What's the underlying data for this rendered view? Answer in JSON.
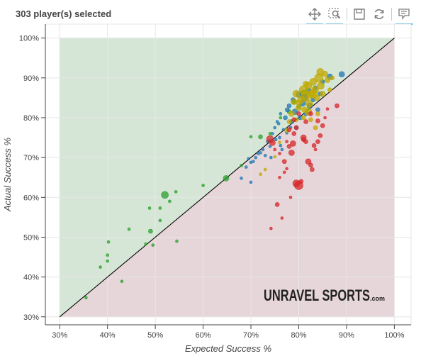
{
  "header": {
    "title": "303 player(s) selected"
  },
  "toolbar": {
    "icons": [
      "pan-icon",
      "box-zoom-icon",
      "save-icon",
      "reset-icon",
      "hover-icon"
    ],
    "accent": "#26aae1"
  },
  "watermark": {
    "text": "UNRAVEL SPORTS",
    "suffix": ".com"
  },
  "chart_data": {
    "type": "scatter",
    "xlabel": "Expected Success %",
    "ylabel": "Actual Success %",
    "xlim": [
      0.27,
      1.035
    ],
    "ylim": [
      0.28,
      1.035
    ],
    "x_ticks": [
      0.3,
      0.4,
      0.5,
      0.6,
      0.7,
      0.8,
      0.9,
      1.0
    ],
    "y_ticks": [
      0.3,
      0.4,
      0.5,
      0.6,
      0.7,
      0.8,
      0.9,
      1.0
    ],
    "x_tick_labels": [
      "30%",
      "40%",
      "50%",
      "60%",
      "70%",
      "80%",
      "90%",
      "100%"
    ],
    "y_tick_labels": [
      "30%",
      "40%",
      "50%",
      "60%",
      "70%",
      "80%",
      "90%",
      "100%"
    ],
    "grid": true,
    "diagonal": [
      0.3,
      1.0
    ],
    "regions": {
      "above": "#d6e6d6",
      "below": "#e6d6d9"
    },
    "colors": {
      "green": "#2ca02c",
      "blue": "#1f77b4",
      "yellow": "#bfa800",
      "red": "#d62728"
    },
    "series": [
      {
        "color": "green",
        "points": [
          [
            0.355,
            0.348,
            2
          ],
          [
            0.385,
            0.425,
            2
          ],
          [
            0.4,
            0.455,
            2
          ],
          [
            0.4,
            0.44,
            2
          ],
          [
            0.402,
            0.488,
            2
          ],
          [
            0.43,
            0.389,
            2
          ],
          [
            0.445,
            0.52,
            2
          ],
          [
            0.48,
            0.483,
            2
          ],
          [
            0.49,
            0.515,
            3
          ],
          [
            0.495,
            0.48,
            2
          ],
          [
            0.488,
            0.573,
            2
          ],
          [
            0.51,
            0.542,
            2
          ],
          [
            0.51,
            0.573,
            2
          ],
          [
            0.52,
            0.606,
            5
          ],
          [
            0.53,
            0.59,
            2
          ],
          [
            0.543,
            0.614,
            2
          ],
          [
            0.545,
            0.49,
            2
          ],
          [
            0.6,
            0.63,
            2
          ],
          [
            0.648,
            0.648,
            4
          ],
          [
            0.68,
            0.68,
            2
          ],
          [
            0.7,
            0.752,
            2
          ],
          [
            0.72,
            0.752,
            3
          ],
          [
            0.74,
            0.76,
            2
          ],
          [
            0.762,
            0.8,
            2
          ],
          [
            0.78,
            0.815,
            3
          ],
          [
            0.79,
            0.84,
            4
          ],
          [
            0.81,
            0.86,
            5
          ],
          [
            0.8,
            0.828,
            3
          ]
        ]
      },
      {
        "color": "blue",
        "points": [
          [
            0.68,
            0.648,
            2
          ],
          [
            0.69,
            0.676,
            2
          ],
          [
            0.695,
            0.697,
            2
          ],
          [
            0.7,
            0.688,
            2
          ],
          [
            0.705,
            0.69,
            2
          ],
          [
            0.71,
            0.7,
            2
          ],
          [
            0.715,
            0.71,
            2
          ],
          [
            0.72,
            0.712,
            2
          ],
          [
            0.725,
            0.72,
            2
          ],
          [
            0.73,
            0.705,
            2
          ],
          [
            0.735,
            0.74,
            2
          ],
          [
            0.74,
            0.728,
            2
          ],
          [
            0.745,
            0.76,
            2
          ],
          [
            0.75,
            0.775,
            2
          ],
          [
            0.755,
            0.79,
            2
          ],
          [
            0.76,
            0.75,
            2
          ],
          [
            0.762,
            0.81,
            2
          ],
          [
            0.768,
            0.77,
            2
          ],
          [
            0.772,
            0.8,
            3
          ],
          [
            0.776,
            0.82,
            3
          ],
          [
            0.78,
            0.83,
            3
          ],
          [
            0.785,
            0.79,
            3
          ],
          [
            0.788,
            0.845,
            3
          ],
          [
            0.792,
            0.815,
            4
          ],
          [
            0.795,
            0.775,
            3
          ],
          [
            0.8,
            0.858,
            4
          ],
          [
            0.803,
            0.8,
            3
          ],
          [
            0.808,
            0.836,
            4
          ],
          [
            0.812,
            0.85,
            5
          ],
          [
            0.815,
            0.81,
            3
          ],
          [
            0.82,
            0.868,
            4
          ],
          [
            0.823,
            0.83,
            4
          ],
          [
            0.83,
            0.845,
            3
          ],
          [
            0.835,
            0.875,
            3
          ],
          [
            0.84,
            0.82,
            3
          ],
          [
            0.845,
            0.86,
            3
          ],
          [
            0.85,
            0.89,
            3
          ],
          [
            0.865,
            0.903,
            4
          ],
          [
            0.89,
            0.909,
            4
          ],
          [
            0.74,
            0.742,
            2
          ],
          [
            0.752,
            0.745,
            2
          ],
          [
            0.762,
            0.73,
            2
          ],
          [
            0.765,
            0.72,
            2
          ],
          [
            0.758,
            0.785,
            2
          ],
          [
            0.775,
            0.762,
            2
          ],
          [
            0.783,
            0.775,
            2
          ],
          [
            0.7,
            0.638,
            2
          ],
          [
            0.742,
            0.7,
            2
          ]
        ]
      },
      {
        "color": "yellow",
        "points": [
          [
            0.72,
            0.658,
            2
          ],
          [
            0.73,
            0.67,
            2
          ],
          [
            0.75,
            0.702,
            2
          ],
          [
            0.76,
            0.738,
            2
          ],
          [
            0.775,
            0.768,
            3
          ],
          [
            0.78,
            0.79,
            3
          ],
          [
            0.785,
            0.81,
            4
          ],
          [
            0.79,
            0.84,
            4
          ],
          [
            0.795,
            0.86,
            5
          ],
          [
            0.8,
            0.825,
            4
          ],
          [
            0.805,
            0.845,
            5
          ],
          [
            0.81,
            0.87,
            6
          ],
          [
            0.812,
            0.82,
            4
          ],
          [
            0.815,
            0.855,
            7
          ],
          [
            0.82,
            0.88,
            5
          ],
          [
            0.822,
            0.835,
            5
          ],
          [
            0.826,
            0.86,
            5
          ],
          [
            0.83,
            0.89,
            5
          ],
          [
            0.834,
            0.87,
            5
          ],
          [
            0.838,
            0.85,
            4
          ],
          [
            0.842,
            0.9,
            6
          ],
          [
            0.846,
            0.88,
            5
          ],
          [
            0.85,
            0.86,
            4
          ],
          [
            0.855,
            0.91,
            4
          ],
          [
            0.86,
            0.895,
            4
          ],
          [
            0.865,
            0.87,
            3
          ],
          [
            0.87,
            0.9,
            3
          ],
          [
            0.81,
            0.8,
            3
          ],
          [
            0.825,
            0.795,
            3
          ],
          [
            0.84,
            0.81,
            3
          ],
          [
            0.835,
            0.775,
            3
          ],
          [
            0.795,
            0.795,
            3
          ],
          [
            0.82,
            0.815,
            5
          ],
          [
            0.8,
            0.838,
            4
          ],
          [
            0.815,
            0.885,
            4
          ],
          [
            0.83,
            0.86,
            6
          ],
          [
            0.845,
            0.915,
            5
          ]
        ]
      },
      {
        "color": "red",
        "points": [
          [
            0.74,
            0.746,
            5
          ],
          [
            0.745,
            0.737,
            4
          ],
          [
            0.75,
            0.72,
            2
          ],
          [
            0.755,
            0.582,
            3
          ],
          [
            0.742,
            0.522,
            2
          ],
          [
            0.765,
            0.548,
            2
          ],
          [
            0.76,
            0.65,
            2
          ],
          [
            0.77,
            0.663,
            2
          ],
          [
            0.775,
            0.672,
            2
          ],
          [
            0.78,
            0.728,
            3
          ],
          [
            0.785,
            0.712,
            4
          ],
          [
            0.788,
            0.735,
            4
          ],
          [
            0.79,
            0.76,
            3
          ],
          [
            0.795,
            0.635,
            5
          ],
          [
            0.8,
            0.63,
            6
          ],
          [
            0.805,
            0.64,
            3
          ],
          [
            0.81,
            0.75,
            4
          ],
          [
            0.815,
            0.74,
            3
          ],
          [
            0.82,
            0.69,
            4
          ],
          [
            0.825,
            0.681,
            3
          ],
          [
            0.828,
            0.67,
            3
          ],
          [
            0.832,
            0.73,
            3
          ],
          [
            0.835,
            0.72,
            2
          ],
          [
            0.84,
            0.74,
            3
          ],
          [
            0.845,
            0.755,
            3
          ],
          [
            0.85,
            0.78,
            3
          ],
          [
            0.855,
            0.8,
            2
          ],
          [
            0.86,
            0.822,
            2
          ],
          [
            0.88,
            0.83,
            3
          ],
          [
            0.78,
            0.77,
            3
          ],
          [
            0.79,
            0.795,
            3
          ],
          [
            0.795,
            0.775,
            3
          ],
          [
            0.8,
            0.81,
            3
          ],
          [
            0.81,
            0.745,
            3
          ],
          [
            0.77,
            0.69,
            3
          ],
          [
            0.76,
            0.71,
            2
          ],
          [
            0.775,
            0.74,
            2
          ],
          [
            0.783,
            0.6,
            2
          ],
          [
            0.815,
            0.79,
            3
          ],
          [
            0.825,
            0.81,
            3
          ],
          [
            0.84,
            0.792,
            3
          ]
        ]
      }
    ]
  }
}
